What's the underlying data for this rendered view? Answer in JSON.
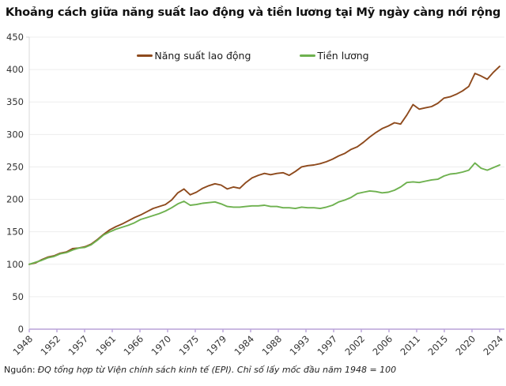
{
  "title": "Khoảng cách giữa năng suất lao động và tiền lương tại Mỹ ngày càng nới rộng",
  "source_note": {
    "prefix": "Nguồn:",
    "text": "ĐQ tổng hợp từ Viện chính sách kinh tế (EPI). Chỉ số lấy mốc đầu năm 1948 = 100"
  },
  "chart_data": {
    "type": "line",
    "title": "Khoảng cách giữa năng suất lao động và tiền lương tại Mỹ ngày càng nới rộng",
    "index_note": "Index, first period 1948 = 100",
    "x_start_year": 1948,
    "x_end_year": 2024,
    "x_tick_labels": [
      "1948",
      "1952",
      "1957",
      "1961",
      "1966",
      "1970",
      "1975",
      "1979",
      "1984",
      "1988",
      "1993",
      "1997",
      "2002",
      "2006",
      "2011",
      "2015",
      "2020",
      "2024"
    ],
    "y_ticks": [
      0,
      50,
      100,
      150,
      200,
      250,
      300,
      350,
      400,
      450
    ],
    "ylim": [
      0,
      450
    ],
    "grid": "horizontal",
    "legend_position": "top",
    "years": [
      1948,
      1949,
      1950,
      1951,
      1952,
      1953,
      1954,
      1955,
      1956,
      1957,
      1958,
      1959,
      1960,
      1961,
      1962,
      1963,
      1964,
      1965,
      1966,
      1967,
      1968,
      1969,
      1970,
      1971,
      1972,
      1973,
      1974,
      1975,
      1976,
      1977,
      1978,
      1979,
      1980,
      1981,
      1982,
      1983,
      1984,
      1985,
      1986,
      1987,
      1988,
      1989,
      1990,
      1991,
      1992,
      1993,
      1994,
      1995,
      1996,
      1997,
      1998,
      1999,
      2000,
      2001,
      2002,
      2003,
      2004,
      2005,
      2006,
      2007,
      2008,
      2009,
      2010,
      2011,
      2012,
      2013,
      2014,
      2015,
      2016,
      2017,
      2018,
      2019,
      2020,
      2021,
      2022,
      2023,
      2024
    ],
    "series": [
      {
        "name": "Năng suất lao động",
        "color": "#8e4a1d",
        "values": [
          100,
          102,
          107,
          111,
          113,
          117,
          119,
          124,
          125,
          127,
          131,
          138,
          146,
          153,
          158,
          162,
          167,
          172,
          176,
          181,
          186,
          189,
          192,
          199,
          210,
          216,
          207,
          211,
          217,
          221,
          224,
          222,
          216,
          219,
          217,
          226,
          233,
          237,
          240,
          238,
          240,
          241,
          237,
          243,
          250,
          252,
          253,
          255,
          258,
          262,
          267,
          271,
          277,
          281,
          288,
          296,
          303,
          309,
          313,
          318,
          316,
          330,
          346,
          339,
          341,
          343,
          348,
          356,
          358,
          362,
          367,
          374,
          394,
          390,
          385,
          396,
          405
        ]
      },
      {
        "name": "Tiền lương",
        "color": "#6eb14f",
        "values": [
          100,
          103,
          106,
          110,
          112,
          116,
          118,
          122,
          125,
          126,
          130,
          137,
          145,
          150,
          154,
          157,
          160,
          164,
          169,
          172,
          175,
          178,
          182,
          187,
          193,
          197,
          191,
          192,
          194,
          195,
          196,
          193,
          189,
          188,
          188,
          189,
          190,
          190,
          191,
          189,
          189,
          187,
          187,
          186,
          188,
          187,
          187,
          186,
          188,
          191,
          196,
          199,
          203,
          209,
          211,
          213,
          212,
          210,
          211,
          214,
          219,
          226,
          227,
          226,
          228,
          230,
          231,
          236,
          239,
          240,
          242,
          245,
          256,
          248,
          245,
          249,
          253
        ]
      }
    ],
    "style": {
      "grid_color": "#ededed",
      "x_axis_color": "#b8a2d8",
      "y_axis_color": "#d8d8d8",
      "tick_label_color": "#333333",
      "background": "#ffffff"
    }
  }
}
